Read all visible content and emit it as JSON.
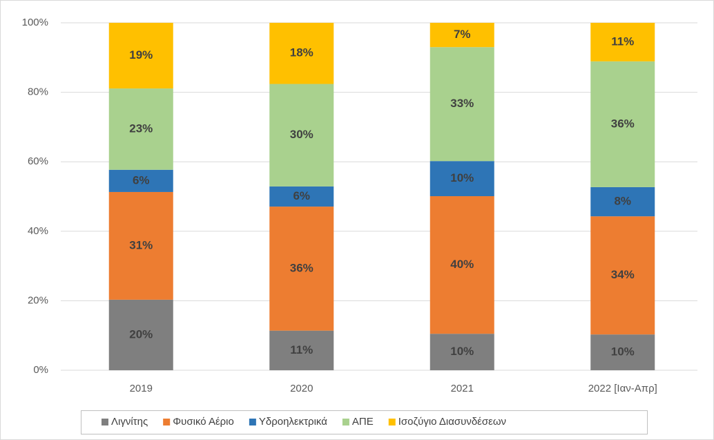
{
  "chart_data": {
    "type": "stacked_bar",
    "categories": [
      "2019",
      "2020",
      "2021",
      "2022 [Ιαν-Απρ]"
    ],
    "series": [
      {
        "name": "Λιγνίτης",
        "color": "#7f7f7f",
        "values": [
          20.3,
          11.4,
          10.5,
          10.3
        ],
        "value_labels": [
          "20%",
          "11%",
          "10%",
          "10%"
        ]
      },
      {
        "name": "Φυσικό Αέριο",
        "color": "#ed7d31",
        "values": [
          31.0,
          35.7,
          39.6,
          34.0
        ],
        "value_labels": [
          "31%",
          "36%",
          "40%",
          "34%"
        ]
      },
      {
        "name": "Υδροηλεκτρικά",
        "color": "#2e75b6",
        "values": [
          6.4,
          5.8,
          10.1,
          8.4
        ],
        "value_labels": [
          "6%",
          "6%",
          "10%",
          "8%"
        ]
      },
      {
        "name": "ΑΠΕ",
        "color": "#a9d18e",
        "values": [
          23.4,
          29.5,
          32.8,
          36.2
        ],
        "value_labels": [
          "23%",
          "30%",
          "33%",
          "36%"
        ]
      },
      {
        "name": "Ισοζύγιο Διασυνδέσεων",
        "color": "#ffc000",
        "values": [
          18.9,
          17.6,
          7.0,
          11.1
        ],
        "value_labels": [
          "19%",
          "18%",
          "7%",
          "11%"
        ]
      }
    ],
    "ylim": [
      0,
      100
    ],
    "yticks": [
      {
        "value": 0,
        "label": "0%"
      },
      {
        "value": 20,
        "label": "20%"
      },
      {
        "value": 40,
        "label": "40%"
      },
      {
        "value": 60,
        "label": "60%"
      },
      {
        "value": 80,
        "label": "80%"
      },
      {
        "value": 100,
        "label": "100%"
      }
    ],
    "grid": true,
    "legend": "bottom"
  }
}
